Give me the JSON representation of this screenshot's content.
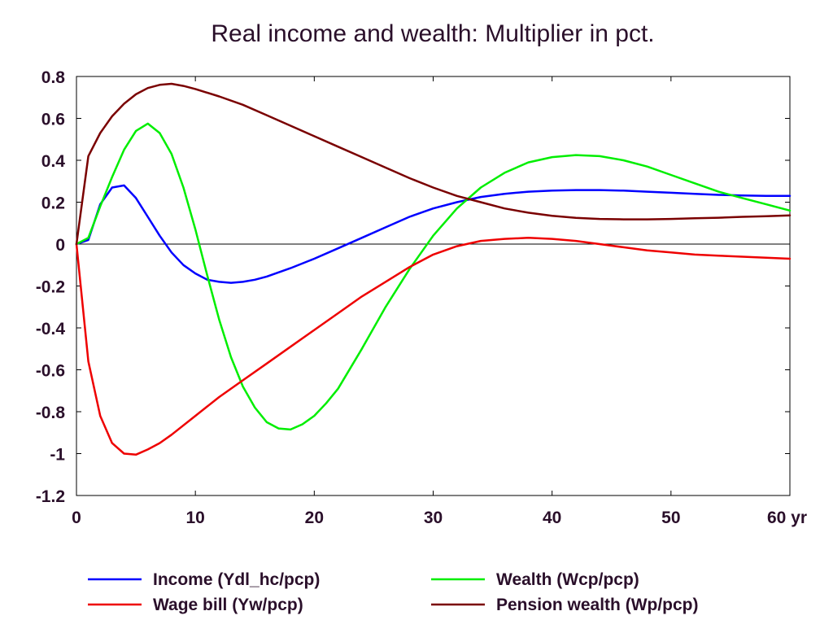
{
  "chart_data": {
    "type": "line",
    "title": "Real income and wealth: Multiplier in pct.",
    "xlabel": "",
    "ylabel": "",
    "xlim": [
      0,
      60
    ],
    "ylim": [
      -1.2,
      0.8
    ],
    "x_ticks": [
      0,
      10,
      20,
      30,
      40,
      50,
      60
    ],
    "x_tick_labels": [
      "0",
      "10",
      "20",
      "30",
      "40",
      "50",
      "60 yr"
    ],
    "y_ticks": [
      0.8,
      0.6,
      0.4,
      0.2,
      0,
      -0.2,
      -0.4,
      -0.6,
      -0.8,
      -1,
      -1.2
    ],
    "y_tick_labels": [
      "0.8",
      "0.6",
      "0.4",
      "0.2",
      "0",
      "-0.2",
      "-0.4",
      "-0.6",
      "-0.8",
      "-1",
      "-1.2"
    ],
    "grid": false,
    "zero_line": true,
    "legend_position": "bottom",
    "series": [
      {
        "name": "Income (Ydl_hc/pcp)",
        "color": "#0000ff",
        "x": [
          0,
          1,
          2,
          3,
          4,
          5,
          6,
          7,
          8,
          9,
          10,
          11,
          12,
          13,
          14,
          15,
          16,
          18,
          20,
          22,
          24,
          26,
          28,
          30,
          32,
          34,
          36,
          38,
          40,
          42,
          44,
          46,
          48,
          50,
          52,
          54,
          56,
          58,
          60
        ],
        "y": [
          0,
          0.02,
          0.19,
          0.27,
          0.28,
          0.22,
          0.13,
          0.04,
          -0.04,
          -0.1,
          -0.14,
          -0.17,
          -0.18,
          -0.185,
          -0.18,
          -0.17,
          -0.155,
          -0.115,
          -0.07,
          -0.02,
          0.03,
          0.08,
          0.13,
          0.17,
          0.2,
          0.225,
          0.24,
          0.25,
          0.255,
          0.258,
          0.258,
          0.255,
          0.25,
          0.245,
          0.24,
          0.235,
          0.232,
          0.23,
          0.23
        ]
      },
      {
        "name": "Wealth (Wcp/pcp)",
        "color": "#00ee00",
        "x": [
          0,
          1,
          2,
          3,
          4,
          5,
          6,
          7,
          8,
          9,
          10,
          11,
          12,
          13,
          14,
          15,
          16,
          17,
          18,
          19,
          20,
          21,
          22,
          24,
          26,
          28,
          30,
          32,
          34,
          36,
          38,
          40,
          42,
          44,
          46,
          48,
          50,
          52,
          54,
          56,
          58,
          60
        ],
        "y": [
          0,
          0.03,
          0.18,
          0.32,
          0.45,
          0.54,
          0.575,
          0.53,
          0.43,
          0.27,
          0.07,
          -0.15,
          -0.36,
          -0.54,
          -0.68,
          -0.78,
          -0.85,
          -0.88,
          -0.885,
          -0.86,
          -0.82,
          -0.76,
          -0.69,
          -0.5,
          -0.3,
          -0.12,
          0.04,
          0.17,
          0.27,
          0.34,
          0.39,
          0.415,
          0.425,
          0.42,
          0.4,
          0.37,
          0.33,
          0.29,
          0.25,
          0.22,
          0.19,
          0.16
        ]
      },
      {
        "name": "Wage bill (Yw/pcp)",
        "color": "#ee0000",
        "x": [
          0,
          1,
          2,
          3,
          4,
          5,
          6,
          7,
          8,
          10,
          12,
          14,
          16,
          18,
          20,
          22,
          24,
          26,
          28,
          30,
          32,
          34,
          36,
          38,
          40,
          42,
          44,
          46,
          48,
          50,
          52,
          54,
          56,
          58,
          60
        ],
        "y": [
          0,
          -0.56,
          -0.82,
          -0.95,
          -1.0,
          -1.005,
          -0.98,
          -0.95,
          -0.91,
          -0.82,
          -0.73,
          -0.65,
          -0.57,
          -0.49,
          -0.41,
          -0.33,
          -0.25,
          -0.18,
          -0.11,
          -0.05,
          -0.01,
          0.015,
          0.025,
          0.03,
          0.025,
          0.015,
          0.0,
          -0.015,
          -0.03,
          -0.04,
          -0.05,
          -0.055,
          -0.06,
          -0.065,
          -0.07
        ]
      },
      {
        "name": "Pension wealth (Wp/pcp)",
        "color": "#7a0000",
        "x": [
          0,
          1,
          2,
          3,
          4,
          5,
          6,
          7,
          8,
          9,
          10,
          12,
          14,
          16,
          18,
          20,
          22,
          24,
          26,
          28,
          30,
          32,
          34,
          36,
          38,
          40,
          42,
          44,
          46,
          48,
          50,
          52,
          54,
          56,
          58,
          60
        ],
        "y": [
          0,
          0.42,
          0.53,
          0.61,
          0.67,
          0.715,
          0.745,
          0.76,
          0.765,
          0.755,
          0.74,
          0.705,
          0.665,
          0.615,
          0.565,
          0.515,
          0.465,
          0.415,
          0.365,
          0.315,
          0.27,
          0.23,
          0.2,
          0.17,
          0.15,
          0.135,
          0.125,
          0.12,
          0.118,
          0.118,
          0.12,
          0.123,
          0.126,
          0.13,
          0.133,
          0.137
        ]
      }
    ]
  }
}
